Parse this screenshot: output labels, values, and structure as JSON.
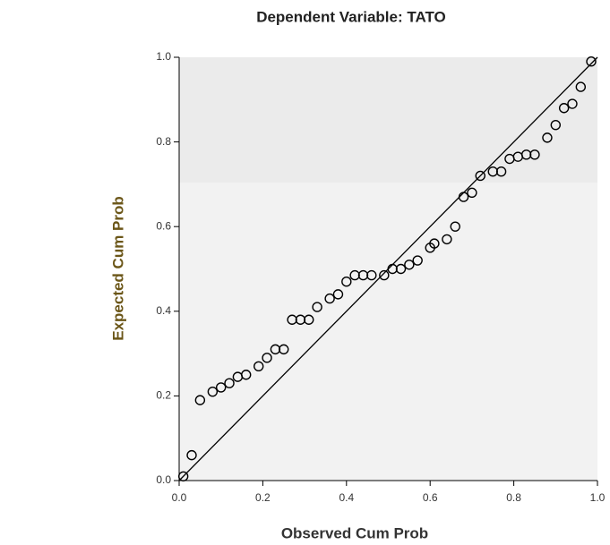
{
  "chart_data": {
    "type": "scatter",
    "title": "Dependent Variable: TATO",
    "x_label": "Observed Cum Prob",
    "y_label": "Expected Cum Prob",
    "color": "#000000",
    "x": [
      0.01,
      0.03,
      0.05,
      0.08,
      0.1,
      0.12,
      0.14,
      0.16,
      0.19,
      0.21,
      0.23,
      0.25,
      0.27,
      0.29,
      0.31,
      0.33,
      0.36,
      0.38,
      0.4,
      0.42,
      0.44,
      0.46,
      0.49,
      0.51,
      0.53,
      0.55,
      0.57,
      0.6,
      0.61,
      0.64,
      0.66,
      0.68,
      0.7,
      0.72,
      0.75,
      0.77,
      0.79,
      0.81,
      0.83,
      0.85,
      0.88,
      0.9,
      0.92,
      0.94,
      0.96,
      0.985
    ],
    "values": [
      0.01,
      0.06,
      0.19,
      0.21,
      0.22,
      0.23,
      0.245,
      0.25,
      0.27,
      0.29,
      0.31,
      0.31,
      0.38,
      0.38,
      0.38,
      0.41,
      0.43,
      0.44,
      0.47,
      0.485,
      0.485,
      0.485,
      0.485,
      0.5,
      0.5,
      0.51,
      0.52,
      0.55,
      0.56,
      0.57,
      0.6,
      0.67,
      0.68,
      0.72,
      0.73,
      0.73,
      0.76,
      0.765,
      0.77,
      0.77,
      0.81,
      0.84,
      0.88,
      0.89,
      0.93,
      0.99
    ],
    "xlim": [
      0,
      1
    ],
    "ylim": [
      0,
      1
    ],
    "xticks": [
      {
        "value": 0,
        "label": "0.0"
      },
      0.2,
      0.4,
      0.6,
      0.8,
      {
        "value": 1,
        "label": "1.0"
      }
    ],
    "yticks": [
      {
        "value": 0,
        "label": "0.0"
      },
      0.2,
      0.4,
      0.6,
      0.8,
      {
        "value": 1,
        "label": "1.0"
      }
    ]
  }
}
